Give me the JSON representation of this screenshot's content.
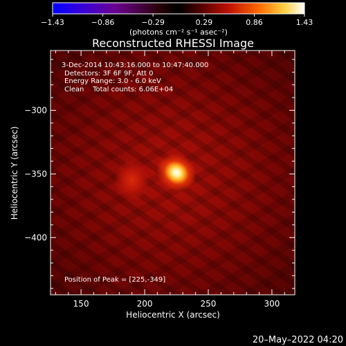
{
  "chart_data": {
    "type": "heatmap",
    "title": "Reconstructed RHESSI Image",
    "xlabel": "Heliocentric X (arcsec)",
    "ylabel": "Heliocentric Y (arcsec)",
    "xlim": [
      126,
      318
    ],
    "ylim": [
      -445,
      -253
    ],
    "x_ticks": [
      150,
      200,
      250,
      300
    ],
    "y_ticks": [
      -300,
      -350,
      -400
    ],
    "colorbar": {
      "unit_label": "(photons cm⁻² s⁻¹ asec⁻²)",
      "range": [
        -1.43,
        1.43
      ],
      "ticks": [
        "−1.43",
        "−0.86",
        "−0.29",
        "0.29",
        "0.86",
        "1.43"
      ]
    },
    "annotations": {
      "line1": "3-Dec-2014 10:43:16.000 to 10:47:40.000",
      "line2": "Detectors: 3F 6F 9F, Att 0",
      "line3": "Energy Range: 3.0 - 6.0 keV",
      "line4": "Clean    Total counts: 6.06E+04",
      "peak": "Position of Peak = [225,-349]"
    },
    "sources": [
      {
        "x": 225,
        "y": -349,
        "intensity": 1.0
      },
      {
        "x": 190,
        "y": -355,
        "intensity": 0.45
      }
    ],
    "peak_position": [
      225,
      -349
    ],
    "colormap": "hot",
    "grid": false
  },
  "footer": {
    "date": "20–May–2022 04:20"
  }
}
